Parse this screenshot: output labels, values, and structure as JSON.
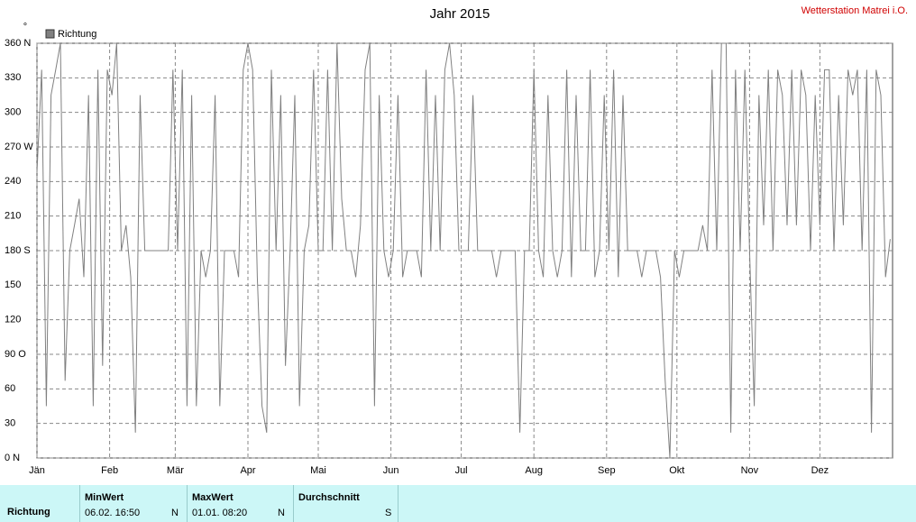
{
  "chart_data": {
    "type": "line",
    "title": "Jahr 2015",
    "station": "Wetterstation Matrei i.O.",
    "y_unit": "°",
    "xlim": [
      0,
      365
    ],
    "xticks": [
      {
        "value": 0,
        "label": "Jän"
      },
      {
        "value": 31,
        "label": "Feb"
      },
      {
        "value": 59,
        "label": "Mär"
      },
      {
        "value": 90,
        "label": "Apr"
      },
      {
        "value": 120,
        "label": "Mai"
      },
      {
        "value": 151,
        "label": "Jun"
      },
      {
        "value": 181,
        "label": "Jul"
      },
      {
        "value": 212,
        "label": "Aug"
      },
      {
        "value": 243,
        "label": "Sep"
      },
      {
        "value": 273,
        "label": "Okt"
      },
      {
        "value": 304,
        "label": "Nov"
      },
      {
        "value": 334,
        "label": "Dez"
      }
    ],
    "ylim": [
      0,
      360
    ],
    "yticks": [
      {
        "value": 0,
        "label": "0 N"
      },
      30,
      60,
      {
        "value": 90,
        "label": "90 O"
      },
      120,
      150,
      {
        "value": 180,
        "label": "180 S"
      },
      210,
      240,
      {
        "value": 270,
        "label": "270 W"
      },
      300,
      330,
      {
        "value": 360,
        "label": "360 N"
      }
    ],
    "grid": true,
    "x": [
      0,
      2,
      4,
      6,
      8,
      10,
      12,
      14,
      16,
      18,
      20,
      22,
      24,
      26,
      28,
      30,
      32,
      34,
      36,
      38,
      40,
      42,
      44,
      46,
      48,
      50,
      52,
      54,
      56,
      58,
      60,
      62,
      64,
      66,
      68,
      70,
      72,
      74,
      76,
      78,
      80,
      82,
      84,
      86,
      88,
      90,
      92,
      94,
      96,
      98,
      100,
      102,
      104,
      106,
      108,
      110,
      112,
      114,
      116,
      118,
      120,
      122,
      124,
      126,
      128,
      130,
      132,
      134,
      136,
      138,
      140,
      142,
      144,
      146,
      148,
      150,
      152,
      154,
      156,
      158,
      160,
      162,
      164,
      166,
      168,
      170,
      172,
      174,
      176,
      178,
      180,
      182,
      184,
      186,
      188,
      190,
      192,
      194,
      196,
      198,
      200,
      202,
      204,
      206,
      208,
      210,
      212,
      214,
      216,
      218,
      220,
      222,
      224,
      226,
      228,
      230,
      232,
      234,
      236,
      238,
      240,
      242,
      244,
      246,
      248,
      250,
      252,
      254,
      256,
      258,
      260,
      262,
      264,
      266,
      268,
      270,
      272,
      274,
      276,
      278,
      280,
      282,
      284,
      286,
      288,
      290,
      292,
      294,
      296,
      298,
      300,
      302,
      304,
      306,
      308,
      310,
      312,
      314,
      316,
      318,
      320,
      322,
      324,
      326,
      328,
      330,
      332,
      334,
      336,
      338,
      340,
      342,
      344,
      346,
      348,
      350,
      352,
      354,
      356,
      358,
      360,
      362,
      364
    ],
    "series": [
      {
        "name": "Richtung",
        "color": "#808080",
        "values": [
          248,
          337,
          45,
          315,
          337,
          360,
          67,
          180,
          202,
          225,
          157,
          315,
          45,
          337,
          80,
          337,
          315,
          360,
          180,
          202,
          157,
          22,
          315,
          180,
          180,
          180,
          180,
          180,
          180,
          337,
          180,
          337,
          45,
          315,
          45,
          180,
          157,
          180,
          315,
          45,
          180,
          180,
          180,
          157,
          337,
          360,
          337,
          157,
          45,
          22,
          337,
          180,
          315,
          80,
          180,
          315,
          45,
          180,
          202,
          337,
          180,
          180,
          337,
          180,
          360,
          225,
          180,
          180,
          157,
          202,
          337,
          360,
          45,
          315,
          180,
          157,
          180,
          315,
          157,
          180,
          180,
          180,
          157,
          337,
          180,
          315,
          180,
          337,
          360,
          315,
          180,
          180,
          180,
          315,
          180,
          180,
          180,
          180,
          157,
          180,
          180,
          180,
          180,
          22,
          180,
          180,
          337,
          180,
          157,
          315,
          180,
          157,
          180,
          337,
          157,
          315,
          180,
          180,
          337,
          157,
          180,
          315,
          180,
          337,
          157,
          315,
          180,
          180,
          180,
          157,
          180,
          180,
          180,
          157,
          67,
          0,
          180,
          157,
          180,
          180,
          180,
          180,
          202,
          180,
          337,
          180,
          360,
          360,
          22,
          337,
          180,
          337,
          180,
          45,
          315,
          202,
          337,
          180,
          337,
          315,
          202,
          337,
          202,
          337,
          315,
          180,
          315,
          202,
          337,
          337,
          180,
          315,
          202,
          337,
          315,
          337,
          180,
          337,
          22,
          337,
          315,
          157,
          190
        ]
      }
    ]
  },
  "table": {
    "row_label": "Richtung",
    "columns": [
      {
        "header": "MinWert",
        "time": "06.02.  16:50",
        "dir": "N"
      },
      {
        "header": "MaxWert",
        "time": "01.01.  08:20",
        "dir": "N"
      },
      {
        "header": "Durchschnitt",
        "dir": "S"
      }
    ]
  }
}
